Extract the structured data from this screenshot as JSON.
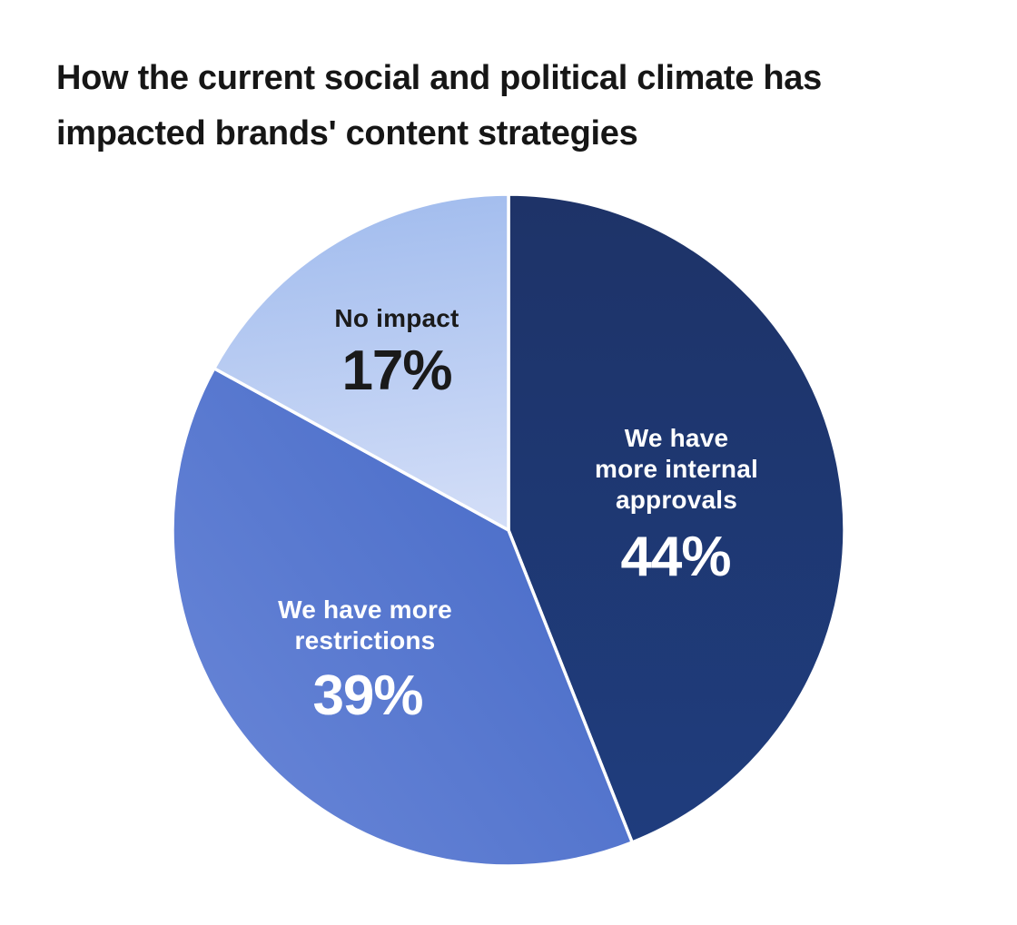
{
  "title": "How the current social and political climate has\nimpacted brands' content strategies",
  "colors": {
    "background": "#ffffff",
    "title_text": "#161616",
    "slice_divider": "#ffffff"
  },
  "chart_data": {
    "type": "pie",
    "title": "How the current social and political climate has impacted brands' content strategies",
    "direction": "clockwise",
    "start_angle_deg": 0,
    "legend": "none",
    "labels_position": "inside",
    "slices": [
      {
        "label": "We have\nmore internal\napprovals",
        "value": 44,
        "percent_label": "44%",
        "color_gradient": [
          "#1E3368",
          "#1F3D7E"
        ],
        "text_color": "#ffffff"
      },
      {
        "label": "We have more\nrestrictions",
        "value": 39,
        "percent_label": "39%",
        "color_gradient": [
          "#3E63C2",
          "#6B88D9"
        ],
        "text_color": "#ffffff"
      },
      {
        "label": "No impact",
        "value": 17,
        "percent_label": "17%",
        "color_gradient": [
          "#A3BDEE",
          "#D6E0F8"
        ],
        "text_color": "#1a1a1a"
      }
    ]
  }
}
